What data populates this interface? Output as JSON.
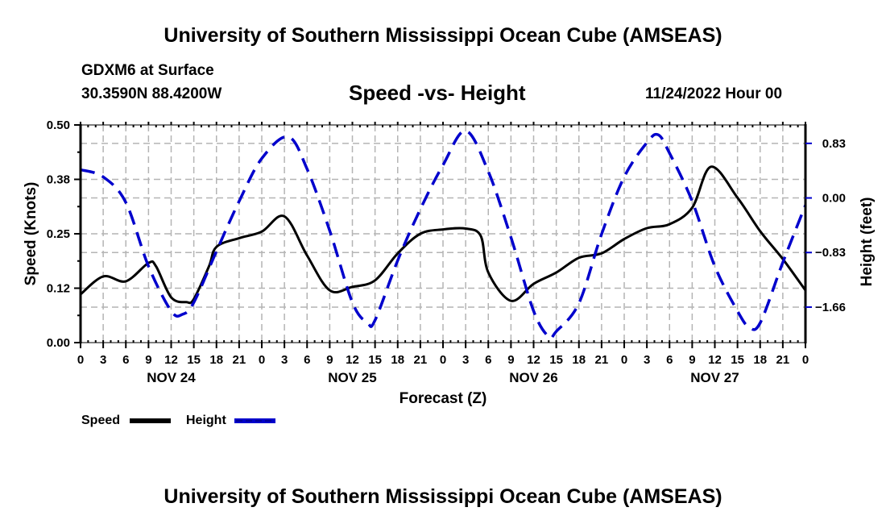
{
  "header": {
    "main_title": "University of Southern Mississippi Ocean Cube (AMSEAS)",
    "station": "GDXM6 at Surface",
    "coords": "30.3590N  88.4200W",
    "date_label": "11/24/2022 Hour 00",
    "footer_title": "University of Southern Mississippi Ocean Cube (AMSEAS)"
  },
  "colors": {
    "speed": "#000000",
    "height": "#0000cc",
    "grid": "#b4b4b4"
  },
  "chart_data": {
    "type": "line",
    "title": "Speed -vs- Height",
    "xlabel": "Forecast (Z)",
    "ylabel": "Speed (Knots)",
    "y2label": "Height (feet)",
    "xlim": [
      0,
      96
    ],
    "ylim": [
      0,
      0.5
    ],
    "y2lim": [
      -2.2,
      1.11
    ],
    "grid": true,
    "legend_position": "bottom-left",
    "x_tick_labels": [
      "0",
      "3",
      "6",
      "9",
      "12",
      "15",
      "18",
      "21",
      "0",
      "3",
      "6",
      "9",
      "12",
      "15",
      "18",
      "21",
      "0",
      "3",
      "6",
      "9",
      "12",
      "15",
      "18",
      "21",
      "0",
      "3",
      "6",
      "9",
      "12",
      "15",
      "18",
      "21",
      "0"
    ],
    "day_labels": [
      {
        "label": "NOV 24",
        "center_hour": 12
      },
      {
        "label": "NOV 25",
        "center_hour": 36
      },
      {
        "label": "NOV 26",
        "center_hour": 60
      },
      {
        "label": "NOV 27",
        "center_hour": 84
      }
    ],
    "y_ticks": [
      {
        "value": 0.0,
        "label": "0.00"
      },
      {
        "value": 0.125,
        "label": "0.12"
      },
      {
        "value": 0.25,
        "label": "0.25"
      },
      {
        "value": 0.375,
        "label": "0.38"
      },
      {
        "value": 0.5,
        "label": "0.50"
      }
    ],
    "y2_ticks": [
      {
        "value": 0.83,
        "label": "0.83"
      },
      {
        "value": 0.0,
        "label": "0.00"
      },
      {
        "value": -0.83,
        "label": "−0.83"
      },
      {
        "value": -1.66,
        "label": "−1.66"
      }
    ],
    "series": [
      {
        "name": "Speed",
        "axis": "left",
        "style": "solid",
        "x": [
          0,
          3,
          6,
          9,
          10,
          12,
          14,
          15,
          17,
          18,
          21,
          24,
          27,
          30,
          33,
          36,
          39,
          42,
          45,
          48,
          51,
          53,
          54,
          57,
          60,
          63,
          66,
          69,
          72,
          75,
          78,
          81,
          83.5,
          87,
          90,
          93,
          96
        ],
        "values": [
          0.111,
          0.152,
          0.141,
          0.183,
          0.175,
          0.104,
          0.093,
          0.1,
          0.175,
          0.22,
          0.24,
          0.255,
          0.29,
          0.2,
          0.12,
          0.128,
          0.143,
          0.205,
          0.25,
          0.26,
          0.262,
          0.245,
          0.161,
          0.096,
          0.135,
          0.161,
          0.195,
          0.205,
          0.238,
          0.263,
          0.272,
          0.31,
          0.404,
          0.333,
          0.256,
          0.192,
          0.12
        ]
      },
      {
        "name": "Height",
        "axis": "right",
        "style": "dashed",
        "x": [
          0,
          3,
          6,
          9,
          12,
          13.5,
          15,
          18,
          21,
          24,
          27.5,
          30,
          33,
          36,
          38,
          39,
          42,
          45,
          48,
          51,
          54,
          57,
          60,
          62,
          63,
          66,
          69,
          72,
          75,
          76.5,
          78,
          81,
          84,
          87,
          88.5,
          90,
          93,
          96
        ],
        "values": [
          0.43,
          0.32,
          -0.07,
          -1.04,
          -1.72,
          -1.77,
          -1.59,
          -0.81,
          -0.05,
          0.6,
          0.93,
          0.44,
          -0.5,
          -1.59,
          -1.9,
          -1.86,
          -0.95,
          -0.17,
          0.5,
          1.02,
          0.4,
          -0.6,
          -1.72,
          -2.11,
          -2.03,
          -1.6,
          -0.55,
          0.32,
          0.84,
          0.96,
          0.68,
          -0.05,
          -1.04,
          -1.72,
          -1.96,
          -1.9,
          -0.98,
          -0.11
        ]
      }
    ]
  }
}
